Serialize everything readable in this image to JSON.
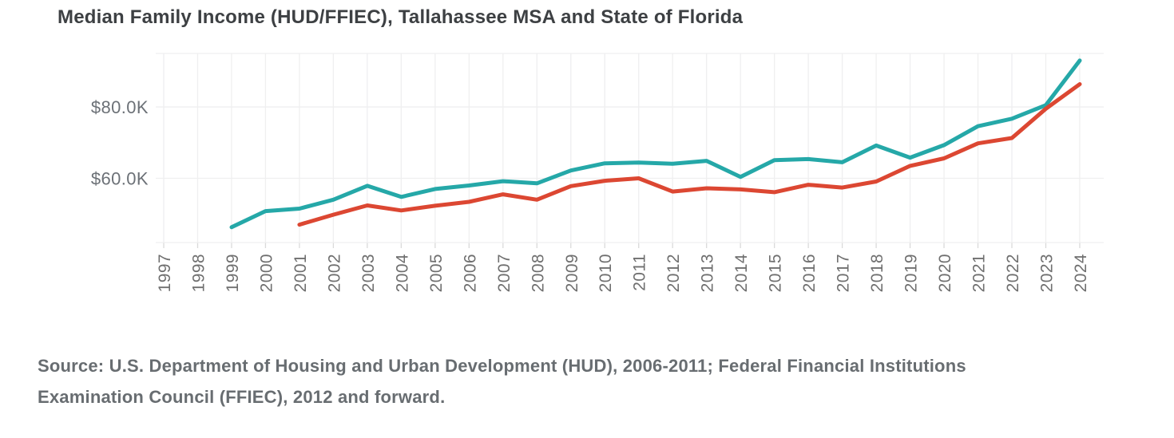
{
  "title": "Median Family Income (HUD/FFIEC), Tallahassee MSA and State of Florida",
  "source": {
    "line1": "Source: U.S. Department of Housing and Urban Development (HUD), 2006-2011; Federal Financial Institutions",
    "line2": "Examination Council (FFIEC), 2012 and forward."
  },
  "chart_data": {
    "type": "line",
    "title": "Median Family Income (HUD/FFIEC), Tallahassee MSA and State of Florida",
    "grid": true,
    "legend": "none",
    "x_axis": {
      "range_years": [
        1997,
        2024
      ],
      "tick_labels": [
        "1997",
        "1998",
        "1999",
        "2000",
        "2001",
        "2002",
        "2003",
        "2004",
        "2005",
        "2006",
        "2007",
        "2008",
        "2009",
        "2010",
        "2011",
        "2012",
        "2013",
        "2014",
        "2015",
        "2016",
        "2017",
        "2018",
        "2019",
        "2020",
        "2021",
        "2022",
        "2023",
        "2024"
      ]
    },
    "y_axis": {
      "range": [
        42000,
        95000
      ],
      "ticks": [
        {
          "value": 60000,
          "label": "$60.0K"
        },
        {
          "value": 80000,
          "label": "$80.0K"
        }
      ],
      "unit": "USD"
    },
    "series": [
      {
        "name": "Tallahassee MSA",
        "color": "#25A8A8",
        "start_year": 1999,
        "values": [
          46300,
          50800,
          51500,
          54000,
          57900,
          54800,
          57000,
          58000,
          59200,
          58600,
          62200,
          64200,
          64400,
          64100,
          64900,
          60400,
          65100,
          65400,
          64500,
          69200,
          65800,
          69300,
          74600,
          76700,
          80500,
          93000
        ]
      },
      {
        "name": "State of Florida",
        "color": "#DC4732",
        "start_year": 2001,
        "values": [
          47000,
          49800,
          52400,
          51000,
          52300,
          53400,
          55500,
          54000,
          57800,
          59300,
          60000,
          56300,
          57200,
          56900,
          56100,
          58200,
          57400,
          59100,
          63500,
          65600,
          69800,
          71300,
          79500,
          86400
        ]
      }
    ],
    "style": {
      "gridline_color": "#efeff0",
      "tick_color": "#dadada",
      "line_width": 5
    }
  }
}
